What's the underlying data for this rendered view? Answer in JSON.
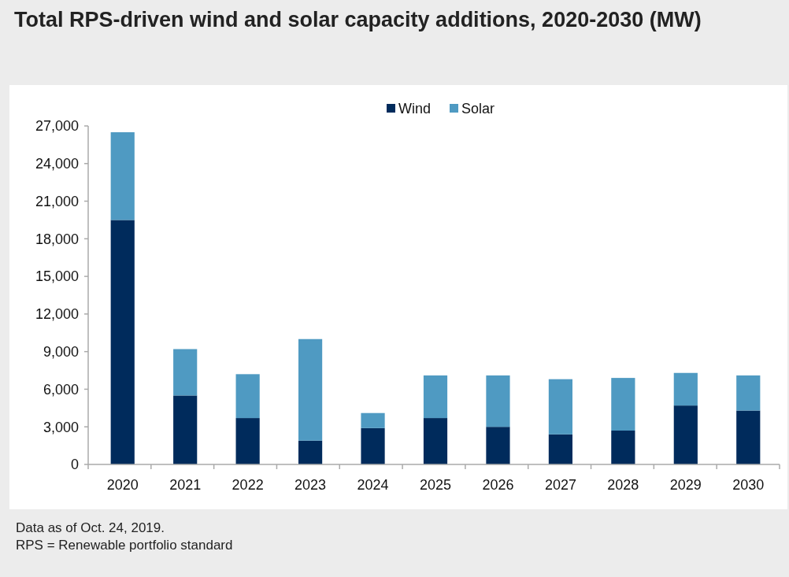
{
  "chart_data": {
    "type": "bar",
    "title": "Total RPS-driven wind and solar capacity additions, 2020-2030 (MW)",
    "categories": [
      "2020",
      "2021",
      "2022",
      "2023",
      "2024",
      "2025",
      "2026",
      "2027",
      "2028",
      "2029",
      "2030"
    ],
    "series": [
      {
        "name": "Wind",
        "color": "#002b5c",
        "values": [
          19500,
          5500,
          3700,
          1900,
          2900,
          3700,
          3000,
          2400,
          2700,
          4700,
          4300
        ]
      },
      {
        "name": "Solar",
        "color": "#4f9ac2",
        "values": [
          7000,
          3700,
          3500,
          8100,
          1200,
          3400,
          4100,
          4400,
          4200,
          2600,
          2800
        ]
      }
    ],
    "stacked": true,
    "ylim": [
      0,
      27000
    ],
    "yticks": [
      {
        "value": 0,
        "label": "0"
      },
      {
        "value": 3000,
        "label": "3,000"
      },
      {
        "value": 6000,
        "label": "6,000"
      },
      {
        "value": 9000,
        "label": "9,000"
      },
      {
        "value": 12000,
        "label": "12,000"
      },
      {
        "value": 15000,
        "label": "15,000"
      },
      {
        "value": 18000,
        "label": "18,000"
      },
      {
        "value": 21000,
        "label": "21,000"
      },
      {
        "value": 24000,
        "label": "24,000"
      },
      {
        "value": 27000,
        "label": "27,000"
      }
    ],
    "legend": "top",
    "grid": false,
    "annotations": [
      "Data as of Oct. 24, 2019.",
      "RPS = Renewable portfolio standard"
    ]
  }
}
